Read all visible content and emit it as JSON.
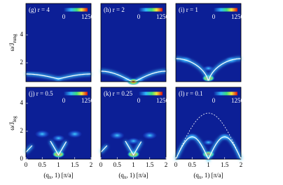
{
  "chart_data": [
    {
      "type": "heatmap",
      "label": "(g) r = 4",
      "xlim": [
        0,
        2
      ],
      "ylim": [
        0.65,
        6.25
      ],
      "yticks": [
        2,
        4
      ],
      "ylabel": "ω/J",
      "ylabel_sub": "rung",
      "colorbar": {
        "lim": [
          0,
          1250
        ],
        "ticks": [
          0,
          1250
        ]
      }
    },
    {
      "type": "heatmap",
      "label": "(h) r = 2",
      "xlim": [
        0,
        2
      ],
      "ylim": [
        0.65,
        6.25
      ],
      "colorbar": {
        "lim": [
          0,
          1250
        ],
        "ticks": [
          0,
          1250
        ]
      }
    },
    {
      "type": "heatmap",
      "label": "(i) r = 1",
      "xlim": [
        0,
        2
      ],
      "ylim": [
        0.65,
        6.25
      ],
      "colorbar": {
        "lim": [
          0,
          1250
        ],
        "ticks": [
          0,
          1250
        ]
      }
    },
    {
      "type": "heatmap",
      "label": "(j) r = 0.5",
      "xlim": [
        0,
        2
      ],
      "ylim": [
        0,
        5.15
      ],
      "xticks": [
        0,
        0.5,
        1,
        1.5,
        2
      ],
      "yticks": [
        0,
        2,
        4
      ],
      "ylabel": "ω/J",
      "ylabel_sub": "leg",
      "xlabel": [
        "(q",
        "x",
        ", 1) [π/a]"
      ],
      "colorbar": {
        "lim": [
          0,
          1250
        ],
        "ticks": [
          0,
          1250
        ]
      }
    },
    {
      "type": "heatmap",
      "label": "(k) r = 0.25",
      "xlim": [
        0,
        2
      ],
      "ylim": [
        0,
        5.15
      ],
      "xticks": [
        0,
        0.5,
        1,
        1.5,
        2
      ],
      "xlabel": [
        "(q",
        "x",
        ", 1) [π/a]"
      ],
      "colorbar": {
        "lim": [
          0,
          1250
        ],
        "ticks": [
          0,
          1250
        ]
      }
    },
    {
      "type": "heatmap",
      "label": "(l) r = 0.1",
      "xlim": [
        0,
        2
      ],
      "ylim": [
        0,
        5.15
      ],
      "xticks": [
        0,
        0.5,
        1,
        1.5,
        2
      ],
      "xlabel": [
        "(q",
        "x",
        ", 1) [π/a]"
      ],
      "colorbar": {
        "lim": [
          0,
          1250
        ],
        "ticks": [
          0,
          1250
        ]
      }
    }
  ]
}
